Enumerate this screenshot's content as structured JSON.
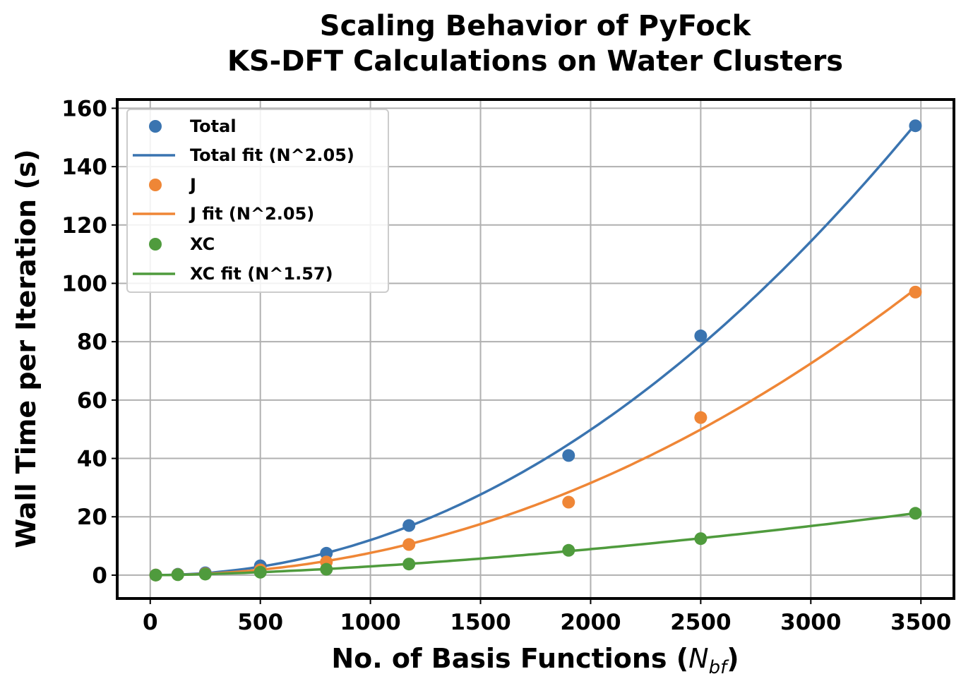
{
  "chart_data": {
    "type": "scatter",
    "title_lines": [
      "Scaling Behavior of PyFock",
      "KS-DFT Calculations on Water Clusters"
    ],
    "xlabel_main": "No. of Basis Functions (",
    "xlabel_math": "N",
    "xlabel_sub": "bf",
    "xlabel_close": ")",
    "ylabel": "Wall Time per Iteration (s)",
    "xlim": [
      -150,
      3650
    ],
    "ylim": [
      -8,
      163
    ],
    "xticks": [
      0,
      500,
      1000,
      1500,
      2000,
      2500,
      3000,
      3500
    ],
    "yticks": [
      0,
      20,
      40,
      60,
      80,
      100,
      120,
      140,
      160
    ],
    "grid": true,
    "legend_position": "upper-left",
    "x": [
      25,
      125,
      250,
      500,
      800,
      1175,
      1900,
      2500,
      3475
    ],
    "series": [
      {
        "name": "Total",
        "fit_name": "Total fit (N^2.05)",
        "color": "#3a74b0",
        "values": [
          0.05,
          0.3,
          0.8,
          3.2,
          7.5,
          17.0,
          41.0,
          82.0,
          154.0
        ],
        "fit_exponent": 2.05
      },
      {
        "name": "J",
        "fit_name": "J fit (N^2.05)",
        "color": "#ef8636",
        "values": [
          0.03,
          0.2,
          0.5,
          1.8,
          4.5,
          10.5,
          25.0,
          54.0,
          97.0
        ],
        "fit_exponent": 2.05
      },
      {
        "name": "XC",
        "fit_name": "XC fit (N^1.57)",
        "color": "#4f9b3d",
        "values": [
          0.02,
          0.15,
          0.35,
          1.0,
          2.0,
          3.8,
          8.5,
          12.5,
          21.2
        ],
        "fit_exponent": 1.57
      }
    ]
  }
}
